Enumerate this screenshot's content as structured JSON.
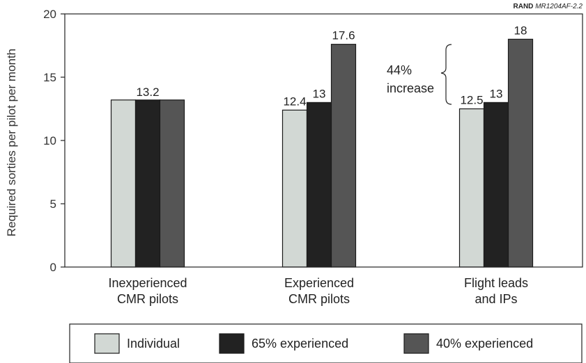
{
  "source_note": {
    "org": "RAND",
    "id": "MR1204AF-2.2"
  },
  "chart_data": {
    "type": "bar",
    "ylabel": "Required sorties per pilot per month",
    "ylim": [
      0,
      20
    ],
    "yticks": [
      0,
      5,
      10,
      15,
      20
    ],
    "categories": [
      [
        "Inexperienced",
        "CMR pilots"
      ],
      [
        "Experienced",
        "CMR pilots"
      ],
      [
        "Flight leads",
        "and IPs"
      ]
    ],
    "series": [
      {
        "name": "Individual",
        "values": [
          13.2,
          12.4,
          12.5
        ],
        "color": "#d2d8d4"
      },
      {
        "name": "65% experienced",
        "values": [
          13.2,
          13,
          13
        ],
        "color": "#222222"
      },
      {
        "name": "40% experienced",
        "values": [
          13.2,
          17.6,
          18
        ],
        "color": "#555555"
      }
    ],
    "data_labels": [
      [
        "13.2"
      ],
      [
        "12.4",
        "13",
        "17.6"
      ],
      [
        "12.5",
        "13",
        "18"
      ]
    ],
    "annotation": {
      "lines": [
        "44%",
        "increase"
      ]
    },
    "legend": {
      "position": "bottom"
    }
  }
}
